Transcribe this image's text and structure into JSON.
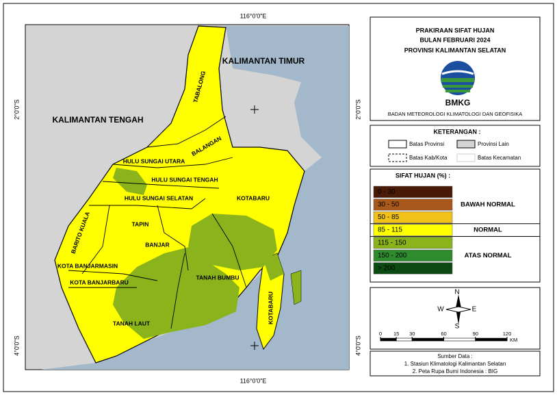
{
  "map": {
    "coords": {
      "top": "116°0'0\"E",
      "bottom": "116°0'0\"E",
      "left_upper": "2°0'0\"S",
      "right_upper": "2°0'0\"S",
      "left_lower": "4°0'0\"S",
      "right_lower": "4°0'0\"S"
    },
    "regions": [
      "KALIMANTAN TIMUR",
      "KALIMANTAN TENGAH",
      "TABALONG",
      "BALANGAN",
      "HULU SUNGAI UTARA",
      "HULU SUNGAI TENGAH",
      "HULU SUNGAI SELATAN",
      "KOTABARU",
      "TAPIN",
      "BARITO KUALA",
      "BANJAR",
      "KOTA BANJARMASIN",
      "KOTA BANJARBARU",
      "TANAH BUMBU",
      "TANAH LAUT",
      "KOTABARU"
    ]
  },
  "header": {
    "title_lines": [
      "PRAKIRAAN SIFAT HUJAN",
      "BULAN FEBRUARI 2024",
      "PROVINSI KALIMANTAN SELATAN"
    ],
    "logo": "BMKG",
    "agency": "BADAN METEOROLOGI KLIMATOLOGI DAN GEOFISIKA"
  },
  "keterangan": {
    "title": "KETERANGAN :",
    "items": [
      "Batas Provinsi",
      "Provinsi Lain",
      "Batas Kab/Kota",
      "Batas Kecamatan"
    ]
  },
  "legend": {
    "title": "SIFAT HUJAN (%) :",
    "classes": [
      {
        "label": "0 - 30",
        "color": "#4a1a08"
      },
      {
        "label": "30 - 50",
        "color": "#a8581a"
      },
      {
        "label": "50 - 85",
        "color": "#f2c21a"
      },
      {
        "label": "85 - 115",
        "color": "#ffff00"
      },
      {
        "label": "115 - 150",
        "color": "#8ab31c"
      },
      {
        "label": "150 - 200",
        "color": "#2e8b2e"
      },
      {
        "label": "> 200",
        "color": "#0b4a12"
      }
    ],
    "groups": [
      "BAWAH NORMAL",
      "NORMAL",
      "ATAS NORMAL"
    ]
  },
  "north": {
    "n": "N",
    "s": "S",
    "e": "E",
    "w": "W"
  },
  "scale": {
    "ticks": [
      0,
      15,
      30,
      60,
      90,
      120
    ],
    "unit": "KM"
  },
  "source": {
    "title": "Sumber Data :",
    "lines": [
      "1. Stasiun Klimatologi Kalimantan Selatan",
      "2. Peta Rupa Bumi Indonesia : BIG"
    ]
  }
}
